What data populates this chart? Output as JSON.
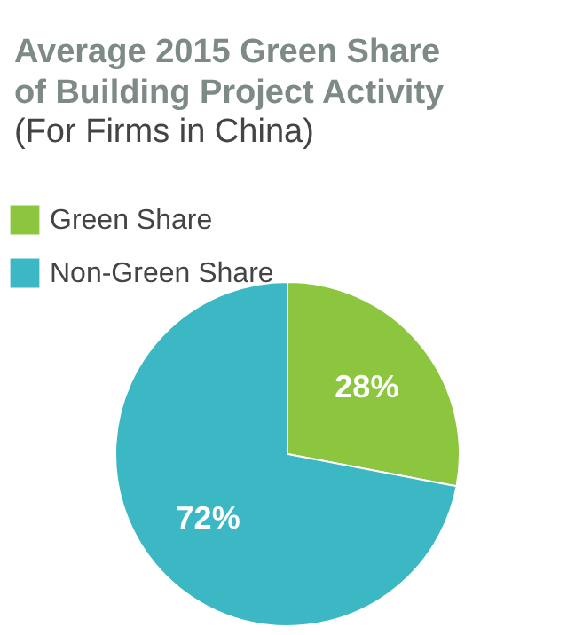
{
  "chart_data": {
    "type": "pie",
    "title": "Average 2015 Green Share of Building Project Activity",
    "subtitle": "(For Firms in China)",
    "categories": [
      "Green Share",
      "Non-Green Share"
    ],
    "values": [
      28,
      72
    ],
    "colors": [
      "#8cc63f",
      "#3cb7c4"
    ],
    "value_labels": [
      "28%",
      "72%"
    ],
    "legend": "top left"
  }
}
